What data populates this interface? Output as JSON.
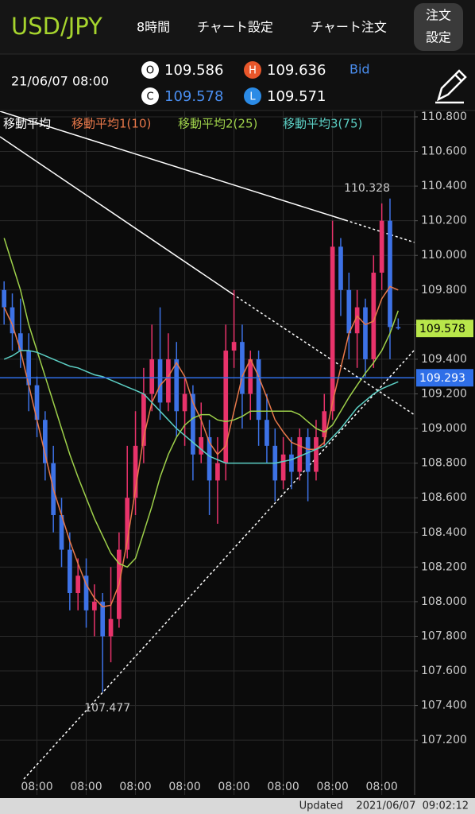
{
  "header": {
    "symbol": "USD/JPY",
    "timeframe": "8時間",
    "menu": [
      "チャート設定",
      "チャート注文"
    ],
    "order_settings": [
      "注文",
      "設定"
    ],
    "datetime": "21/06/07 08:00",
    "ohlc_letters": {
      "open": "O",
      "high": "H",
      "close": "C",
      "low": "L"
    },
    "price_type": "Bid"
  },
  "chart_data": {
    "type": "candlestick",
    "legend_title": "移動平均",
    "candles": {
      "up_color": "#e8336b",
      "down_color": "#3d72e6",
      "open": [
        109.8,
        109.7,
        109.55,
        109.45,
        109.25,
        109.05,
        108.8,
        108.5,
        108.3,
        108.05,
        108.15,
        107.95,
        108.0,
        107.8,
        107.9,
        108.3,
        108.6,
        108.9,
        109.2,
        109.4,
        109.15,
        109.4,
        109.1,
        109.2,
        108.85,
        108.95,
        108.7,
        108.8,
        109.45,
        109.5,
        109.2,
        109.4,
        109.05,
        108.9,
        108.7,
        108.85,
        108.75,
        108.95,
        108.75,
        108.95,
        109.1,
        110.05,
        109.8,
        109.55,
        109.7,
        109.4,
        109.9,
        110.2,
        109.586
      ],
      "high": [
        109.85,
        109.78,
        109.75,
        109.55,
        109.3,
        109.1,
        108.9,
        108.6,
        108.4,
        108.25,
        108.25,
        108.1,
        108.05,
        108.2,
        108.4,
        108.9,
        109.1,
        109.35,
        109.6,
        109.7,
        109.55,
        109.5,
        109.3,
        109.25,
        109.15,
        109.05,
        108.95,
        109.6,
        109.8,
        109.6,
        109.45,
        109.45,
        109.2,
        109.0,
        108.95,
        108.95,
        109.0,
        109.0,
        109.05,
        109.2,
        110.2,
        110.1,
        109.9,
        109.8,
        109.75,
        110.0,
        110.3,
        110.328,
        109.636
      ],
      "low": [
        109.6,
        109.45,
        109.35,
        109.1,
        108.95,
        108.7,
        108.4,
        108.2,
        107.95,
        107.95,
        107.85,
        107.8,
        107.477,
        107.65,
        107.85,
        108.25,
        108.5,
        108.8,
        109.1,
        109.05,
        109.1,
        108.95,
        108.9,
        108.7,
        108.8,
        108.5,
        108.45,
        108.7,
        109.35,
        109.0,
        109.05,
        108.9,
        108.8,
        108.58,
        108.65,
        108.65,
        108.7,
        108.58,
        108.7,
        108.9,
        109.05,
        109.65,
        109.4,
        109.35,
        109.3,
        109.35,
        109.8,
        109.4,
        109.571
      ],
      "close": [
        109.7,
        109.55,
        109.45,
        109.25,
        109.05,
        108.8,
        108.5,
        108.3,
        108.05,
        108.15,
        107.95,
        108.0,
        107.8,
        107.9,
        108.3,
        108.6,
        108.9,
        109.2,
        109.4,
        109.15,
        109.4,
        109.1,
        109.2,
        108.85,
        108.95,
        108.7,
        108.8,
        109.45,
        109.5,
        109.2,
        109.4,
        109.05,
        108.9,
        108.7,
        108.85,
        108.75,
        108.95,
        108.75,
        108.95,
        109.1,
        110.05,
        109.8,
        109.55,
        109.7,
        109.4,
        109.9,
        110.2,
        109.586,
        109.578
      ]
    },
    "moving_averages": [
      {
        "name": "移動平均1(10)",
        "color": "#e8784a",
        "values": [
          109.7,
          109.6,
          109.45,
          109.25,
          109.05,
          108.85,
          108.65,
          108.5,
          108.35,
          108.22,
          108.1,
          108.02,
          107.97,
          107.98,
          108.1,
          108.35,
          108.65,
          108.95,
          109.15,
          109.25,
          109.3,
          109.38,
          109.3,
          109.15,
          109.05,
          108.92,
          108.85,
          108.9,
          109.1,
          109.3,
          109.4,
          109.3,
          109.18,
          109.05,
          108.98,
          108.92,
          108.9,
          108.88,
          108.88,
          108.92,
          109.15,
          109.35,
          109.55,
          109.65,
          109.6,
          109.62,
          109.75,
          109.82,
          109.8
        ]
      },
      {
        "name": "移動平均2(25)",
        "color": "#9ed04a",
        "values": [
          110.1,
          109.95,
          109.8,
          109.6,
          109.45,
          109.3,
          109.15,
          109.0,
          108.85,
          108.72,
          108.6,
          108.48,
          108.38,
          108.28,
          108.22,
          108.2,
          108.25,
          108.4,
          108.55,
          108.72,
          108.85,
          108.95,
          109.02,
          109.06,
          109.08,
          109.08,
          109.05,
          109.04,
          109.05,
          109.07,
          109.1,
          109.1,
          109.1,
          109.1,
          109.1,
          109.1,
          109.08,
          109.04,
          109.0,
          108.98,
          109.02,
          109.1,
          109.18,
          109.25,
          109.32,
          109.38,
          109.45,
          109.55,
          109.68
        ]
      },
      {
        "name": "移動平均3(75)",
        "color": "#5ccfc4",
        "values": [
          109.4,
          109.42,
          109.45,
          109.45,
          109.44,
          109.42,
          109.4,
          109.38,
          109.36,
          109.35,
          109.33,
          109.31,
          109.3,
          109.28,
          109.26,
          109.24,
          109.22,
          109.2,
          109.15,
          109.1,
          109.05,
          109.0,
          108.96,
          108.92,
          108.88,
          108.84,
          108.82,
          108.8,
          108.8,
          108.8,
          108.8,
          108.8,
          108.8,
          108.8,
          108.81,
          108.82,
          108.84,
          108.86,
          108.88,
          108.9,
          108.95,
          109.0,
          109.06,
          109.12,
          109.16,
          109.2,
          109.23,
          109.25,
          109.27
        ]
      }
    ],
    "price_tag_color": "#b8e64a",
    "hline": {
      "value": 109.293,
      "color": "#2f6fe8"
    },
    "grid": true,
    "xlim": [
      -0.5,
      50
    ],
    "xticks": [
      {
        "value": 4,
        "label": "08:00"
      },
      {
        "value": 10,
        "label": "08:00"
      },
      {
        "value": 16,
        "label": "08:00"
      },
      {
        "value": 22,
        "label": "08:00"
      },
      {
        "value": 28,
        "label": "08:00"
      },
      {
        "value": 34,
        "label": "08:00"
      },
      {
        "value": 40,
        "label": "08:00"
      },
      {
        "value": 46,
        "label": "08:00"
      }
    ],
    "ylim": [
      106.884,
      110.832
    ],
    "yticks": [
      {
        "value": 107.2,
        "label": "107.200"
      },
      {
        "value": 107.4,
        "label": "107.400"
      },
      {
        "value": 107.6,
        "label": "107.600"
      },
      {
        "value": 107.8,
        "label": "107.800"
      },
      {
        "value": 108.0,
        "label": "108.000"
      },
      {
        "value": 108.2,
        "label": "108.200"
      },
      {
        "value": 108.4,
        "label": "108.400"
      },
      {
        "value": 108.6,
        "label": "108.600"
      },
      {
        "value": 108.8,
        "label": "108.800"
      },
      {
        "value": 109.0,
        "label": "109.000"
      },
      {
        "value": 109.2,
        "label": "109.200"
      },
      {
        "value": 109.4,
        "label": "109.400"
      },
      {
        "value": 109.6,
        "label": "109.600"
      },
      {
        "value": 109.8,
        "label": "109.800"
      },
      {
        "value": 110.0,
        "label": "110.000"
      },
      {
        "value": 110.2,
        "label": "110.200"
      },
      {
        "value": 110.4,
        "label": "110.400"
      },
      {
        "value": 110.6,
        "label": "110.600"
      },
      {
        "value": 110.8,
        "label": "110.800"
      }
    ]
  },
  "footer": {
    "label": "Updated",
    "timestamp": "2021/06/07  09:02:12"
  }
}
